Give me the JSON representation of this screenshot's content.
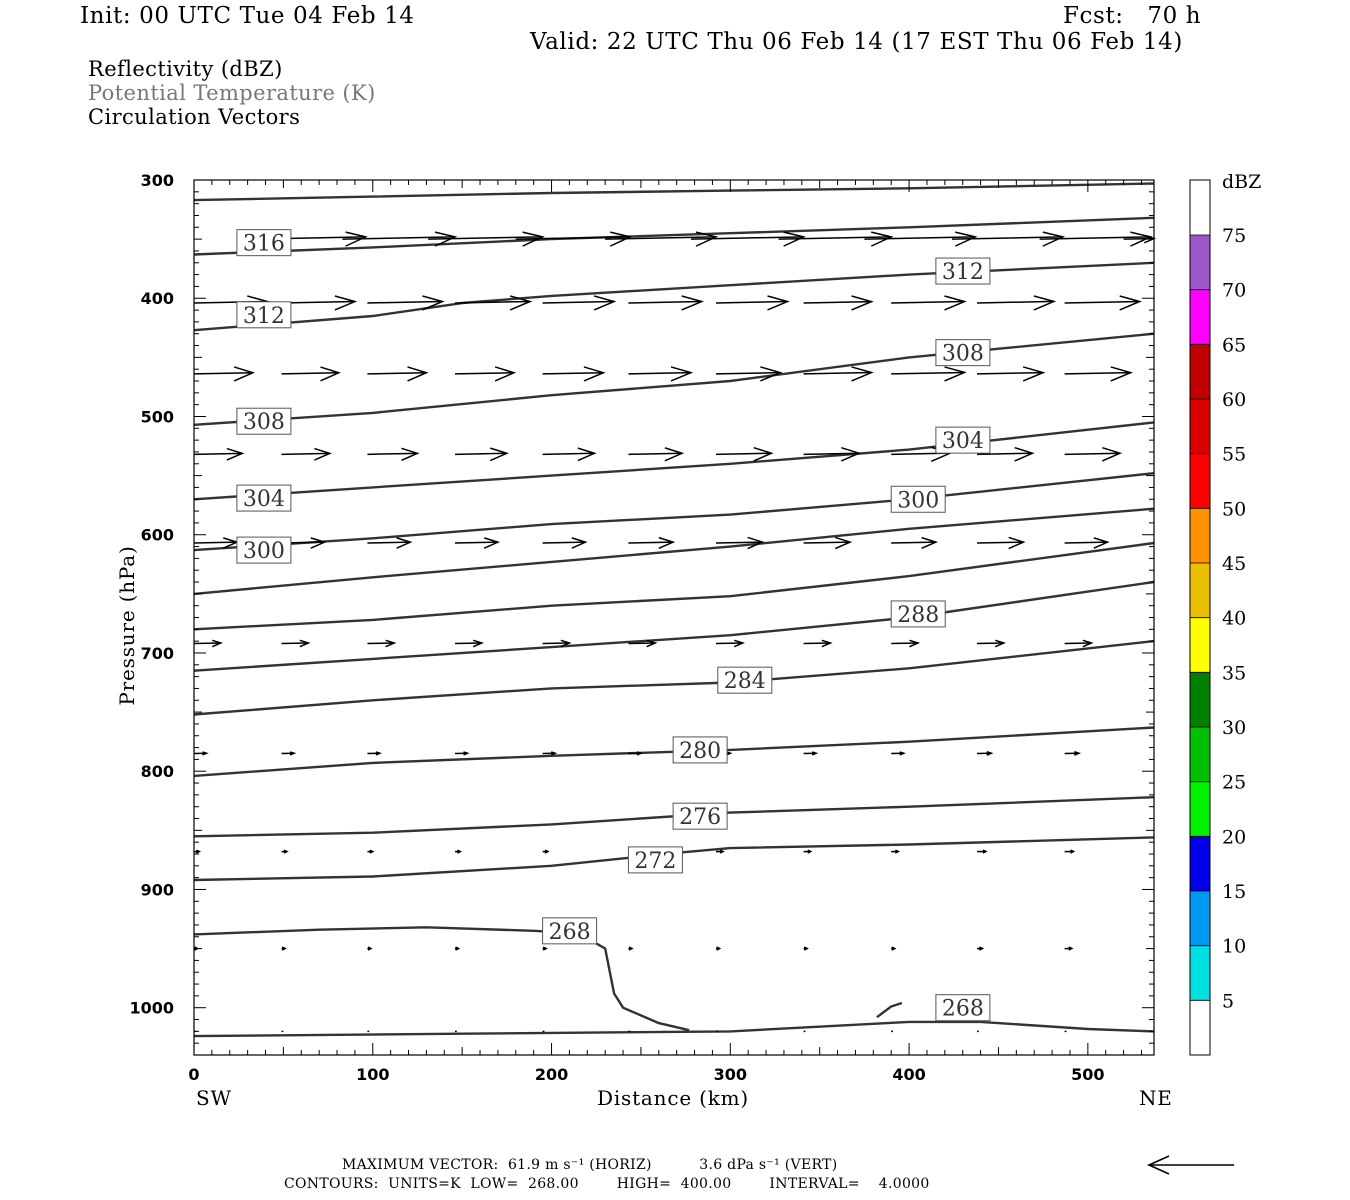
{
  "header": {
    "init": "Init: 00 UTC Tue 04 Feb 14",
    "fcst": "Fcst:   70 h",
    "valid": "Valid: 22 UTC Thu 06 Feb 14 (17 EST Thu 06 Feb 14)"
  },
  "legend": {
    "line1": "Reflectivity (dBZ)",
    "line2": "Potential Temperature (K)",
    "line3": "Circulation Vectors"
  },
  "footer": {
    "max_vector": "MAXIMUM VECTOR:  61.9 m s⁻¹ (HORIZ)          3.6 dPa s⁻¹ (VERT)",
    "contours": "CONTOURS:  UNITS=K  LOW=  268.00        HIGH=  400.00        INTERVAL=    4.0000"
  },
  "chart_data": {
    "type": "line",
    "title": "",
    "xlabel": "Distance (km)",
    "ylabel": "Pressure (hPa)",
    "x_end_labels": [
      "SW",
      "NE"
    ],
    "xlim": [
      0,
      537
    ],
    "ylim": [
      1040,
      300
    ],
    "y_scale": "linear-reversed",
    "x_ticks": [
      0,
      100,
      200,
      300,
      400,
      500
    ],
    "y_ticks": [
      300,
      400,
      500,
      600,
      700,
      800,
      900,
      1000
    ],
    "grid": false,
    "contour_color": "#333333",
    "series": [
      {
        "label": "",
        "points": [
          [
            0,
            317
          ],
          [
            100,
            314
          ],
          [
            200,
            311
          ],
          [
            300,
            309
          ],
          [
            400,
            307
          ],
          [
            537,
            303
          ]
        ]
      },
      {
        "label": "316",
        "label_at": [
          24,
          353
        ],
        "points": [
          [
            0,
            363
          ],
          [
            100,
            357
          ],
          [
            200,
            350
          ],
          [
            300,
            345
          ],
          [
            400,
            340
          ],
          [
            537,
            332
          ]
        ]
      },
      {
        "label": "312",
        "label_at": [
          24,
          414
        ],
        "label2": "312",
        "label2_at": [
          415,
          377
        ],
        "points": [
          [
            0,
            427
          ],
          [
            100,
            415
          ],
          [
            150,
            404
          ],
          [
            200,
            398
          ],
          [
            300,
            389
          ],
          [
            400,
            380
          ],
          [
            537,
            370
          ]
        ]
      },
      {
        "label": "308",
        "label_at": [
          24,
          504
        ],
        "label2": "308",
        "label2_at": [
          415,
          446
        ],
        "points": [
          [
            0,
            507
          ],
          [
            100,
            497
          ],
          [
            200,
            482
          ],
          [
            300,
            470
          ],
          [
            400,
            450
          ],
          [
            537,
            430
          ]
        ]
      },
      {
        "label": "304",
        "label_at": [
          24,
          569
        ],
        "label2": "304",
        "label2_at": [
          415,
          520
        ],
        "points": [
          [
            0,
            570
          ],
          [
            100,
            560
          ],
          [
            200,
            550
          ],
          [
            300,
            540
          ],
          [
            400,
            528
          ],
          [
            537,
            505
          ]
        ]
      },
      {
        "label": "300",
        "label_at": [
          24,
          613
        ],
        "label2": "300",
        "label2_at": [
          390,
          570
        ],
        "points": [
          [
            0,
            613
          ],
          [
            100,
            603
          ],
          [
            200,
            591
          ],
          [
            300,
            583
          ],
          [
            400,
            570
          ],
          [
            537,
            548
          ]
        ]
      },
      {
        "label": "",
        "points": [
          [
            0,
            650
          ],
          [
            100,
            636
          ],
          [
            200,
            623
          ],
          [
            300,
            610
          ],
          [
            400,
            595
          ],
          [
            537,
            578
          ]
        ]
      },
      {
        "label": "",
        "points": [
          [
            0,
            680
          ],
          [
            100,
            672
          ],
          [
            200,
            660
          ],
          [
            300,
            652
          ],
          [
            400,
            635
          ],
          [
            537,
            607
          ]
        ]
      },
      {
        "label": "288",
        "label_at": [
          390,
          667
        ],
        "points": [
          [
            0,
            715
          ],
          [
            100,
            705
          ],
          [
            200,
            695
          ],
          [
            300,
            685
          ],
          [
            400,
            670
          ],
          [
            537,
            640
          ]
        ]
      },
      {
        "label": "284",
        "label_at": [
          293,
          723
        ],
        "points": [
          [
            0,
            752
          ],
          [
            100,
            740
          ],
          [
            200,
            730
          ],
          [
            300,
            725
          ],
          [
            400,
            713
          ],
          [
            537,
            690
          ]
        ]
      },
      {
        "label": "280",
        "label_at": [
          268,
          782
        ],
        "points": [
          [
            0,
            804
          ],
          [
            100,
            793
          ],
          [
            200,
            787
          ],
          [
            300,
            782
          ],
          [
            400,
            775
          ],
          [
            537,
            763
          ]
        ]
      },
      {
        "label": "276",
        "label_at": [
          268,
          838
        ],
        "points": [
          [
            0,
            855
          ],
          [
            100,
            852
          ],
          [
            200,
            845
          ],
          [
            300,
            835
          ],
          [
            400,
            830
          ],
          [
            537,
            822
          ]
        ]
      },
      {
        "label": "272",
        "label_at": [
          243,
          875
        ],
        "points": [
          [
            0,
            892
          ],
          [
            100,
            889
          ],
          [
            200,
            880
          ],
          [
            270,
            869
          ],
          [
            300,
            865
          ],
          [
            400,
            862
          ],
          [
            537,
            856
          ]
        ]
      },
      {
        "label": "268",
        "label_at": [
          195,
          935
        ],
        "points": [
          [
            0,
            938
          ],
          [
            70,
            934
          ],
          [
            130,
            932
          ],
          [
            190,
            935
          ],
          [
            215,
            937
          ],
          [
            230,
            950
          ],
          [
            235,
            988
          ],
          [
            240,
            1000
          ],
          [
            260,
            1013
          ],
          [
            277,
            1019
          ]
        ]
      },
      {
        "label": "268",
        "label_at": [
          415,
          1000
        ],
        "points": [
          [
            0,
            1024
          ],
          [
            150,
            1022
          ],
          [
            300,
            1020
          ],
          [
            400,
            1012
          ],
          [
            440,
            1012
          ],
          [
            500,
            1018
          ],
          [
            537,
            1020
          ]
        ]
      },
      {
        "label": "",
        "points": [
          [
            382,
            1008
          ],
          [
            390,
            999
          ],
          [
            396,
            996
          ]
        ]
      }
    ],
    "vectors": [
      {
        "p": 350,
        "segments": [
          [
            34,
            96
          ],
          [
            83,
            146
          ],
          [
            131,
            195
          ],
          [
            180,
            244
          ],
          [
            230,
            292
          ],
          [
            278,
            341
          ],
          [
            327,
            390
          ],
          [
            375,
            437
          ],
          [
            424,
            486
          ],
          [
            473,
            535
          ],
          [
            520,
            537
          ]
        ]
      },
      {
        "p": 404,
        "segments": [
          [
            0,
            41
          ],
          [
            49,
            90
          ],
          [
            97,
            139
          ],
          [
            146,
            188
          ],
          [
            195,
            235
          ],
          [
            243,
            284
          ],
          [
            292,
            332
          ],
          [
            341,
            379
          ],
          [
            390,
            431
          ],
          [
            438,
            481
          ],
          [
            487,
            529
          ]
        ]
      },
      {
        "p": 464,
        "segments": [
          [
            0,
            33
          ],
          [
            49,
            81
          ],
          [
            97,
            130
          ],
          [
            146,
            179
          ],
          [
            195,
            229
          ],
          [
            243,
            278
          ],
          [
            292,
            328
          ],
          [
            341,
            379
          ],
          [
            390,
            431
          ],
          [
            438,
            475
          ],
          [
            487,
            524
          ]
        ]
      },
      {
        "p": 532,
        "segments": [
          [
            0,
            27
          ],
          [
            49,
            76
          ],
          [
            97,
            125
          ],
          [
            146,
            175
          ],
          [
            195,
            224
          ],
          [
            243,
            273
          ],
          [
            292,
            323
          ],
          [
            341,
            372
          ],
          [
            390,
            423
          ],
          [
            438,
            469
          ],
          [
            487,
            518
          ]
        ]
      },
      {
        "p": 607,
        "segments": [
          [
            0,
            24
          ],
          [
            49,
            73
          ],
          [
            97,
            121
          ],
          [
            146,
            170
          ],
          [
            195,
            219
          ],
          [
            243,
            268
          ],
          [
            292,
            318
          ],
          [
            341,
            367
          ],
          [
            390,
            415
          ],
          [
            438,
            464
          ],
          [
            487,
            511
          ]
        ]
      },
      {
        "p": 692,
        "segments": [
          [
            0,
            15
          ],
          [
            49,
            64
          ],
          [
            97,
            112
          ],
          [
            146,
            161
          ],
          [
            195,
            210
          ],
          [
            243,
            258
          ],
          [
            292,
            307
          ],
          [
            341,
            356
          ],
          [
            390,
            405
          ],
          [
            438,
            453
          ],
          [
            487,
            502
          ]
        ]
      },
      {
        "p": 785,
        "segments": [
          [
            0,
            7
          ],
          [
            49,
            56
          ],
          [
            97,
            104
          ],
          [
            146,
            153
          ],
          [
            195,
            202
          ],
          [
            243,
            250
          ],
          [
            292,
            300
          ],
          [
            341,
            348
          ],
          [
            390,
            397
          ],
          [
            438,
            446
          ],
          [
            487,
            495
          ]
        ]
      },
      {
        "p": 868,
        "segments": [
          [
            0,
            3
          ],
          [
            49,
            52
          ],
          [
            97,
            100
          ],
          [
            146,
            149
          ],
          [
            195,
            198
          ],
          [
            243,
            246
          ],
          [
            292,
            296
          ],
          [
            341,
            345
          ],
          [
            390,
            394
          ],
          [
            438,
            443
          ],
          [
            487,
            492
          ]
        ]
      },
      {
        "p": 950,
        "segments": [
          [
            0,
            2
          ],
          [
            49,
            51
          ],
          [
            97,
            99
          ],
          [
            146,
            148
          ],
          [
            195,
            197
          ],
          [
            243,
            245
          ],
          [
            292,
            294
          ],
          [
            341,
            343
          ],
          [
            390,
            392
          ],
          [
            438,
            441
          ],
          [
            487,
            491
          ]
        ]
      },
      {
        "p": 1020,
        "segments": [
          [
            0,
            1
          ],
          [
            49,
            50
          ],
          [
            97,
            98
          ],
          [
            146,
            147
          ],
          [
            195,
            196
          ],
          [
            243,
            244
          ],
          [
            292,
            293
          ],
          [
            341,
            342
          ],
          [
            390,
            391
          ],
          [
            438,
            439
          ],
          [
            487,
            488
          ]
        ]
      }
    ],
    "colorbar": {
      "label": "dBZ",
      "levels": [
        "5",
        "10",
        "15",
        "20",
        "25",
        "30",
        "35",
        "40",
        "45",
        "50",
        "55",
        "60",
        "65",
        "70",
        "75"
      ],
      "colors": [
        "#ffffff",
        "#00e0e0",
        "#0098f0",
        "#0000e8",
        "#00f000",
        "#00c000",
        "#008000",
        "#ffff00",
        "#e8c000",
        "#ff9000",
        "#ff0000",
        "#d80000",
        "#c00000",
        "#ff00ff",
        "#9c58c8",
        "#ffffff"
      ]
    }
  }
}
